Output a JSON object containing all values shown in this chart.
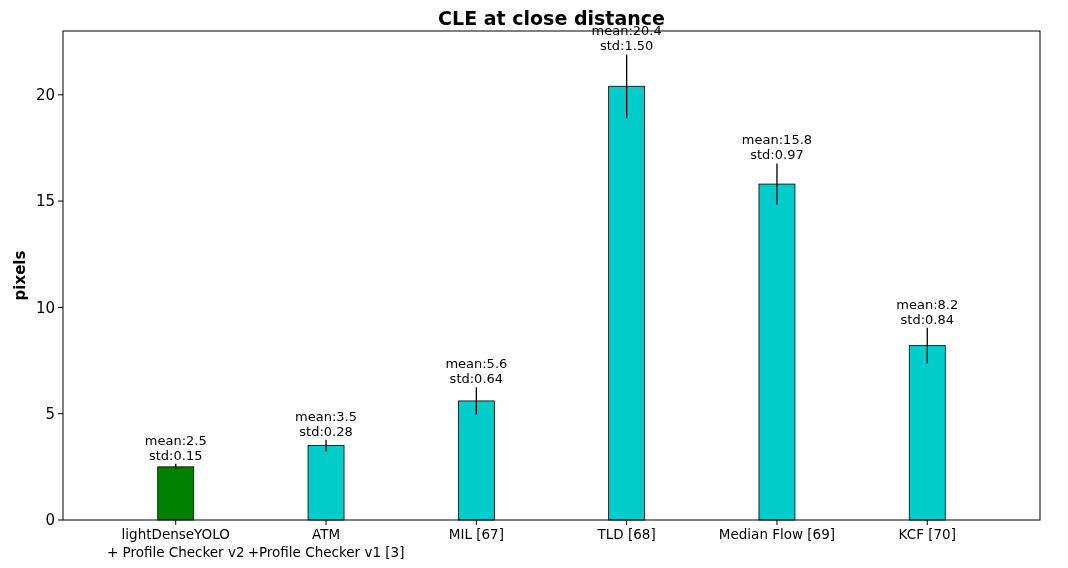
{
  "chart_data": {
    "type": "bar",
    "title": "CLE at close distance",
    "ylabel": "pixels",
    "categories": [
      "lightDenseYOLO\n+ Profile Checker v2",
      "ATM\n+Profile Checker v1 [3]",
      "MIL [67]",
      "TLD [68]",
      "Median Flow [69]",
      "KCF [70]"
    ],
    "values": [
      2.5,
      3.5,
      5.6,
      20.4,
      15.8,
      8.2
    ],
    "errors": [
      0.15,
      0.28,
      0.64,
      1.5,
      0.97,
      0.84
    ],
    "colors": [
      "#008000",
      "#00cccc",
      "#00cccc",
      "#00cccc",
      "#00cccc",
      "#00cccc"
    ],
    "value_labels": [
      "mean:2.5\nstd:0.15",
      "mean:3.5\nstd:0.28",
      "mean:5.6\nstd:0.64",
      "mean:20.4\nstd:1.50",
      "mean:15.8\nstd:0.97",
      "mean:8.2\nstd:0.84"
    ],
    "ylim": [
      0,
      23
    ],
    "yticks": [
      0,
      5,
      10,
      15,
      20
    ]
  }
}
